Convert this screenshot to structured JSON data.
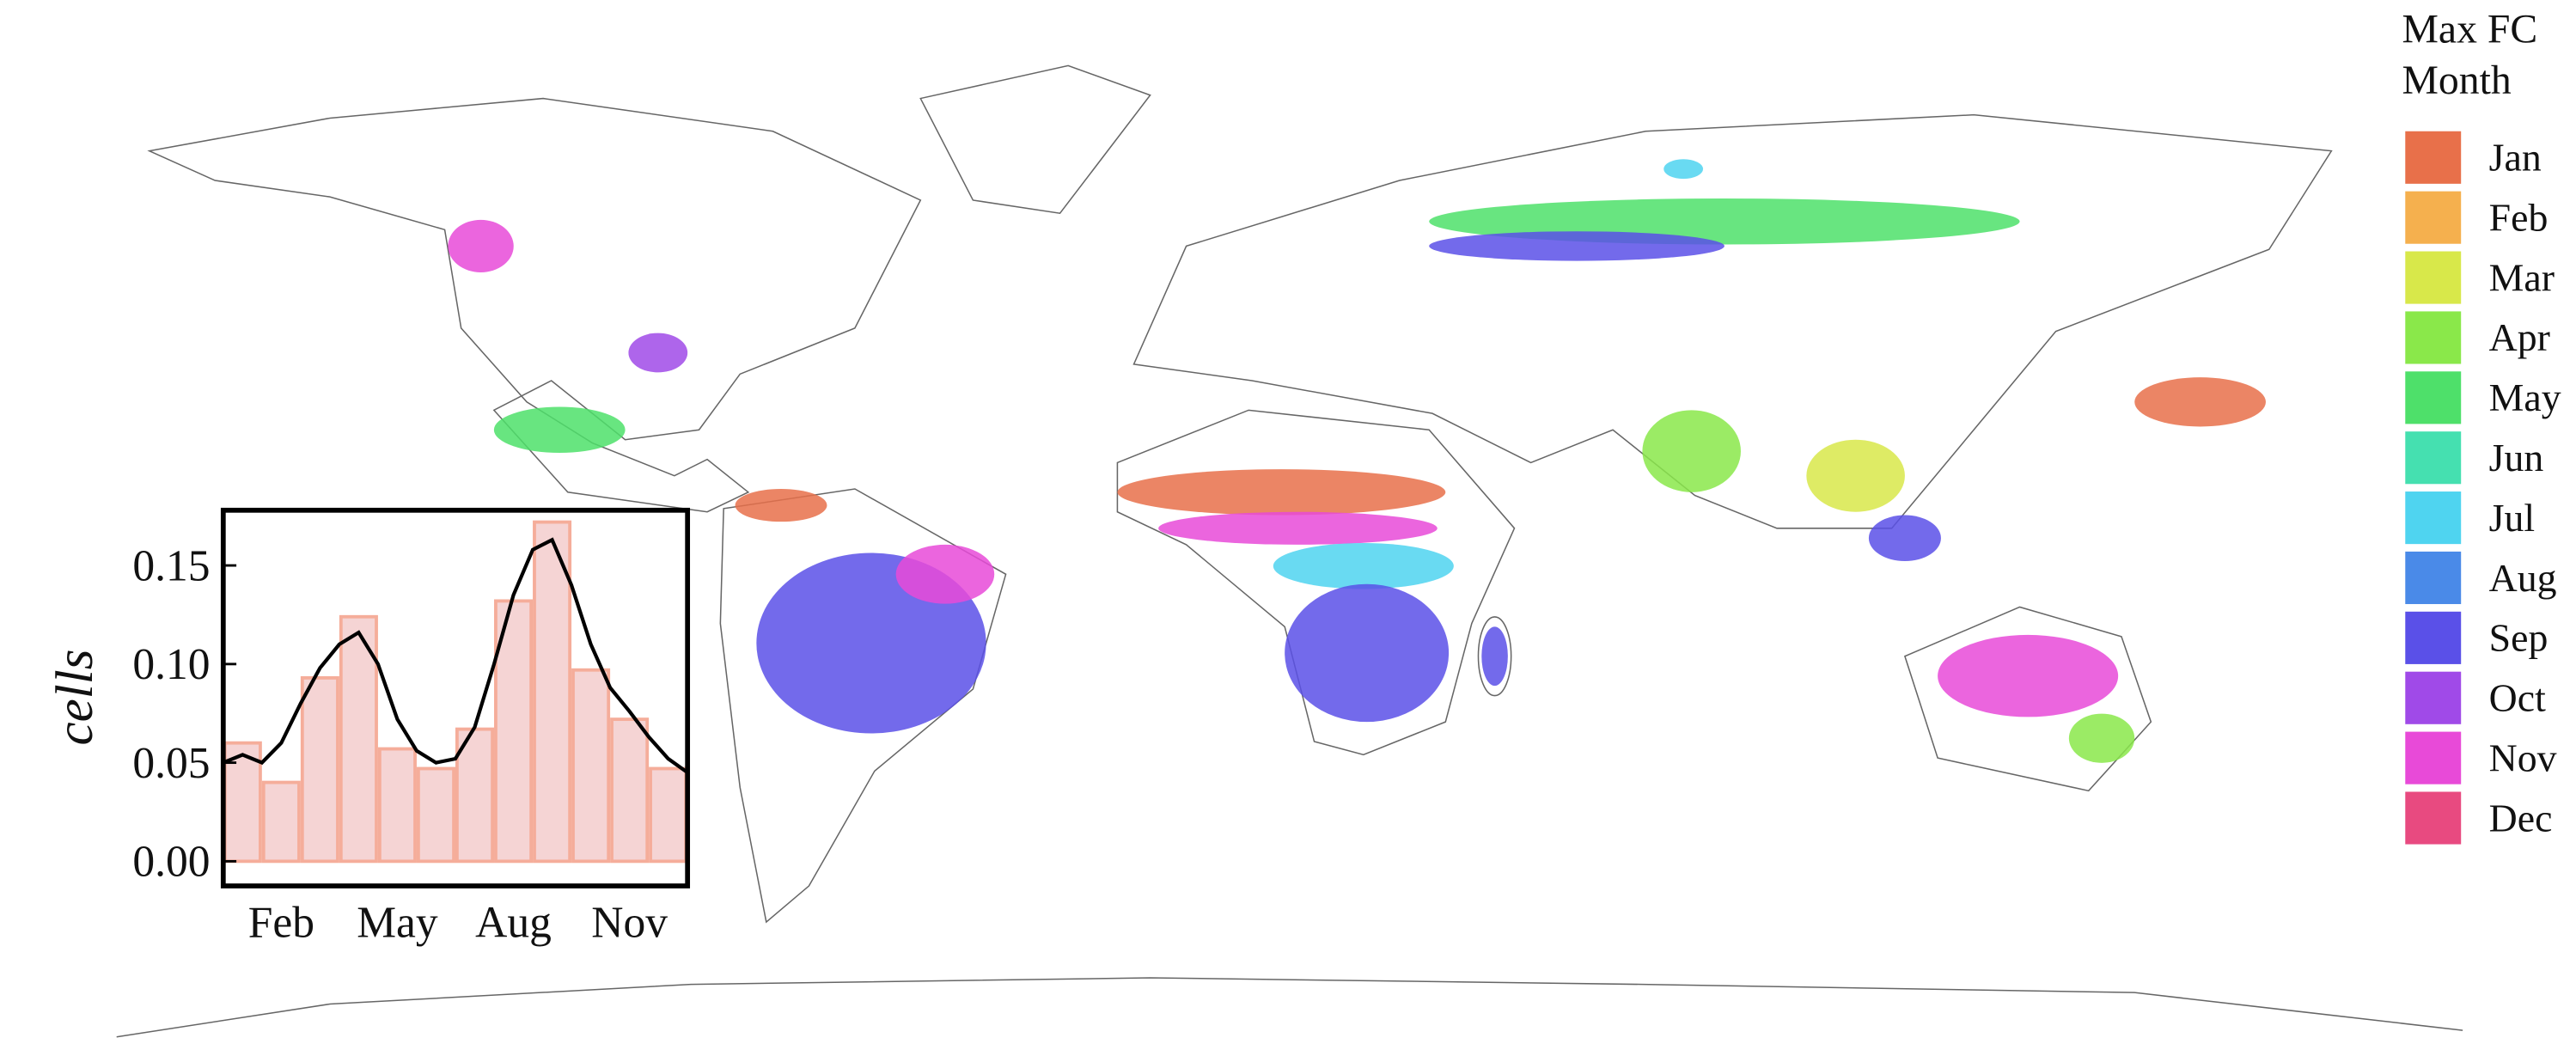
{
  "legend": {
    "title_lines": [
      "Max FC",
      "Month"
    ],
    "items": [
      {
        "label": "Jan",
        "color": "#e8704a"
      },
      {
        "label": "Feb",
        "color": "#f5b04e"
      },
      {
        "label": "Mar",
        "color": "#d8e84a"
      },
      {
        "label": "Apr",
        "color": "#8ae84a"
      },
      {
        "label": "May",
        "color": "#4ee06a"
      },
      {
        "label": "Jun",
        "color": "#45e0b0"
      },
      {
        "label": "Jul",
        "color": "#4fd4f0"
      },
      {
        "label": "Aug",
        "color": "#4a8ae8"
      },
      {
        "label": "Sep",
        "color": "#5a50e8"
      },
      {
        "label": "Oct",
        "color": "#a04ae8"
      },
      {
        "label": "Nov",
        "color": "#e84ad8"
      },
      {
        "label": "Dec",
        "color": "#e84a80"
      }
    ]
  },
  "chart_data": {
    "type": "bar",
    "y_label": "cells",
    "categories": [
      null,
      "Feb",
      null,
      null,
      "May",
      null,
      null,
      "Aug",
      null,
      null,
      "Nov",
      null
    ],
    "values": [
      0.06,
      0.04,
      0.093,
      0.124,
      0.057,
      0.047,
      0.067,
      0.132,
      0.172,
      0.097,
      0.072,
      0.047
    ],
    "color": "#f2c9c9",
    "edge_color": "#f5ad9a",
    "kde": {
      "x": [
        0.5,
        1,
        1.5,
        2,
        2.5,
        3,
        3.5,
        4,
        4.5,
        5,
        5.5,
        6,
        6.5,
        7,
        7.5,
        8,
        8.5,
        9,
        9.5,
        10,
        10.5,
        11,
        11.5,
        12,
        12.5
      ],
      "values": [
        0.05,
        0.054,
        0.05,
        0.06,
        0.08,
        0.098,
        0.11,
        0.116,
        0.1,
        0.072,
        0.056,
        0.05,
        0.052,
        0.068,
        0.1,
        0.135,
        0.158,
        0.163,
        0.14,
        0.11,
        0.088,
        0.076,
        0.063,
        0.052,
        0.045
      ],
      "color": "#000000"
    },
    "xlim": [
      0.5,
      12.5
    ],
    "ylim": [
      -0.0125,
      0.178
    ],
    "yticks": [
      {
        "value": 0.0,
        "label": "0.00"
      },
      0.05,
      {
        "value": 0.1,
        "label": "0.10"
      },
      0.15
    ]
  }
}
